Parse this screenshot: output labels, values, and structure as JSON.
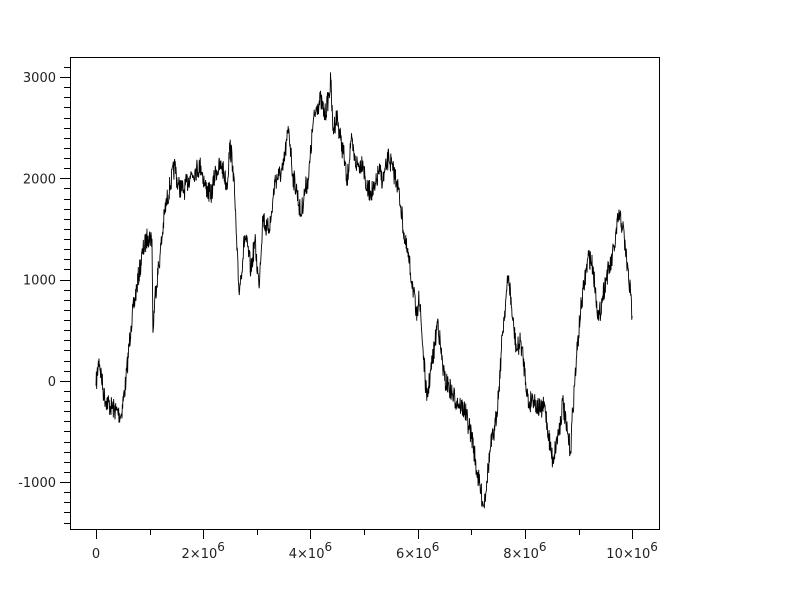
{
  "chart_data": {
    "type": "line",
    "title": "",
    "xlabel": "",
    "ylabel": "",
    "xlim": [
      -485000,
      10520000
    ],
    "ylim": [
      -1464,
      3198
    ],
    "grid": false,
    "line_color": "#000000",
    "x_ticks": [
      {
        "value": 0,
        "base": "0",
        "exp": ""
      },
      {
        "value": 2000000,
        "base": "2×10",
        "exp": "6"
      },
      {
        "value": 4000000,
        "base": "4×10",
        "exp": "6"
      },
      {
        "value": 6000000,
        "base": "6×10",
        "exp": "6"
      },
      {
        "value": 8000000,
        "base": "8×10",
        "exp": "6"
      },
      {
        "value": 10000000,
        "base": "10×10",
        "exp": "6"
      }
    ],
    "x_minor_step": 1000000,
    "y_ticks": [
      {
        "value": -1000,
        "label": "-1000"
      },
      {
        "value": 0,
        "label": "0"
      },
      {
        "value": 1000,
        "label": "1000"
      },
      {
        "value": 2000,
        "label": "2000"
      },
      {
        "value": 3000,
        "label": "3000"
      }
    ],
    "y_minor_step": 100,
    "series": [
      {
        "x": [
          0,
          56000,
          149000,
          261000,
          373000,
          466000,
          559000,
          652000,
          764000,
          876000,
          969000,
          1044000,
          1062000,
          1100000,
          1193000,
          1286000,
          1379000,
          1473000,
          1528000,
          1640000,
          1752000,
          1845000,
          1957000,
          2032000,
          2144000,
          2237000,
          2349000,
          2442000,
          2498000,
          2554000,
          2591000,
          2628000,
          2666000,
          2703000,
          2777000,
          2852000,
          2889000,
          2964000,
          3038000,
          3113000,
          3187000,
          3262000,
          3337000,
          3411000,
          3486000,
          3560000,
          3597000,
          3672000,
          3747000,
          3821000,
          3896000,
          3970000,
          4045000,
          4119000,
          4194000,
          4269000,
          4343000,
          4380000,
          4418000,
          4492000,
          4567000,
          4641000,
          4679000,
          4753000,
          4828000,
          4902000,
          4977000,
          5051000,
          5126000,
          5200000,
          5275000,
          5350000,
          5424000,
          5461000,
          5536000,
          5611000,
          5685000,
          5760000,
          5834000,
          5909000,
          5983000,
          6021000,
          6095000,
          6170000,
          6244000,
          6319000,
          6375000,
          6431000,
          6505000,
          6580000,
          6654000,
          6729000,
          6804000,
          6878000,
          6953000,
          7027000,
          7102000,
          7176000,
          7232000,
          7288000,
          7363000,
          7437000,
          7512000,
          7586000,
          7661000,
          7698000,
          7773000,
          7847000,
          7922000,
          7997000,
          8071000,
          8146000,
          8220000,
          8295000,
          8369000,
          8444000,
          8518000,
          8593000,
          8668000,
          8705000,
          8779000,
          8854000,
          8891000,
          8966000,
          9040000,
          9115000,
          9190000,
          9264000,
          9339000,
          9376000,
          9451000,
          9525000,
          9600000,
          9674000,
          9749000,
          9824000,
          9898000,
          9973000,
          10000000
        ],
        "y": [
          -50,
          220,
          -150,
          -247,
          -296,
          -346,
          0,
          543,
          939,
          1284,
          1432,
          1403,
          474,
          840,
          1235,
          1680,
          1926,
          2124,
          1926,
          1877,
          2025,
          2075,
          2124,
          1926,
          1828,
          2075,
          2124,
          1926,
          2322,
          2124,
          1778,
          1284,
          889,
          1037,
          1433,
          1235,
          1087,
          1383,
          939,
          1630,
          1482,
          1581,
          1976,
          2025,
          2075,
          2371,
          2490,
          2025,
          1877,
          1630,
          1877,
          2025,
          2519,
          2717,
          2766,
          2618,
          2816,
          2964,
          2470,
          2618,
          2371,
          2174,
          1926,
          2371,
          2174,
          2124,
          2174,
          1877,
          1877,
          1877,
          2075,
          1976,
          2124,
          2223,
          2075,
          1976,
          1729,
          1383,
          1186,
          939,
          593,
          889,
          346,
          -198,
          99,
          346,
          613,
          296,
          0,
          -49,
          -148,
          -198,
          -247,
          -296,
          -445,
          -593,
          -889,
          -1087,
          -1235,
          -988,
          -642,
          -494,
          -99,
          494,
          889,
          1037,
          593,
          296,
          395,
          99,
          -247,
          -148,
          -247,
          -296,
          -247,
          -543,
          -790,
          -593,
          -395,
          -198,
          -494,
          -692,
          -296,
          247,
          692,
          988,
          1235,
          1136,
          790,
          593,
          840,
          1037,
          1136,
          1334,
          1630,
          1531,
          1186,
          840,
          642
        ]
      }
    ]
  }
}
